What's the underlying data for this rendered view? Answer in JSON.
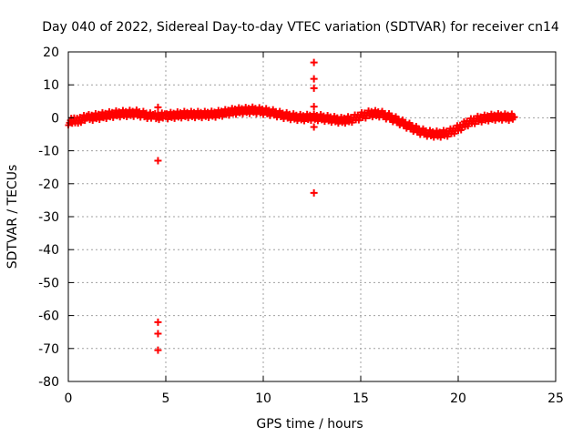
{
  "chart_data": {
    "type": "scatter",
    "title": "Day 040 of 2022, Sidereal Day-to-day VTEC variation (SDTVAR) for receiver cn14",
    "xlabel": "GPS time / hours",
    "ylabel": "SDTVAR / TECUs",
    "xlim": [
      0,
      25
    ],
    "ylim": [
      -80,
      20
    ],
    "xticks": [
      0,
      5,
      10,
      15,
      20,
      25
    ],
    "yticks": [
      20,
      10,
      0,
      -10,
      -20,
      -30,
      -40,
      -50,
      -60,
      -70,
      -80
    ],
    "grid": true,
    "marker": "+",
    "colors": {
      "series": "#ff0000",
      "grid": "#a0a0a0",
      "axis": "#000000"
    },
    "trend": [
      [
        0.0,
        -1.2
      ],
      [
        0.3,
        -1.0
      ],
      [
        0.6,
        -0.5
      ],
      [
        1.0,
        0.0
      ],
      [
        1.5,
        0.4
      ],
      [
        2.0,
        0.8
      ],
      [
        2.5,
        1.2
      ],
      [
        3.0,
        1.3
      ],
      [
        3.5,
        1.4
      ],
      [
        4.0,
        0.8
      ],
      [
        4.4,
        0.3
      ],
      [
        5.0,
        0.6
      ],
      [
        5.5,
        0.8
      ],
      [
        6.0,
        1.0
      ],
      [
        6.5,
        1.0
      ],
      [
        7.0,
        1.0
      ],
      [
        7.5,
        1.1
      ],
      [
        8.0,
        1.5
      ],
      [
        8.5,
        2.0
      ],
      [
        9.0,
        2.2
      ],
      [
        9.5,
        2.3
      ],
      [
        10.0,
        2.0
      ],
      [
        10.5,
        1.5
      ],
      [
        11.0,
        0.8
      ],
      [
        11.5,
        0.3
      ],
      [
        12.0,
        0.0
      ],
      [
        12.5,
        0.2
      ],
      [
        13.0,
        0.0
      ],
      [
        13.5,
        -0.4
      ],
      [
        14.0,
        -0.8
      ],
      [
        14.5,
        -0.5
      ],
      [
        15.0,
        0.5
      ],
      [
        15.5,
        1.3
      ],
      [
        16.0,
        1.2
      ],
      [
        16.5,
        0.2
      ],
      [
        17.0,
        -1.2
      ],
      [
        17.5,
        -2.6
      ],
      [
        18.0,
        -4.0
      ],
      [
        18.5,
        -4.8
      ],
      [
        19.0,
        -5.0
      ],
      [
        19.5,
        -4.6
      ],
      [
        20.0,
        -3.2
      ],
      [
        20.5,
        -1.5
      ],
      [
        21.0,
        -0.5
      ],
      [
        21.5,
        0.0
      ],
      [
        22.0,
        0.3
      ],
      [
        22.5,
        0.2
      ],
      [
        22.9,
        0.2
      ]
    ],
    "outliers": [
      {
        "x": 4.6,
        "y": 3.2
      },
      {
        "x": 4.6,
        "y": -13.0
      },
      {
        "x": 4.6,
        "y": -62.0
      },
      {
        "x": 4.6,
        "y": -65.5
      },
      {
        "x": 4.6,
        "y": -70.5
      },
      {
        "x": 12.6,
        "y": 16.8
      },
      {
        "x": 12.6,
        "y": 11.8
      },
      {
        "x": 12.6,
        "y": 9.0
      },
      {
        "x": 12.6,
        "y": 3.4
      },
      {
        "x": 12.6,
        "y": -2.8
      },
      {
        "x": 12.6,
        "y": -22.8
      }
    ]
  }
}
